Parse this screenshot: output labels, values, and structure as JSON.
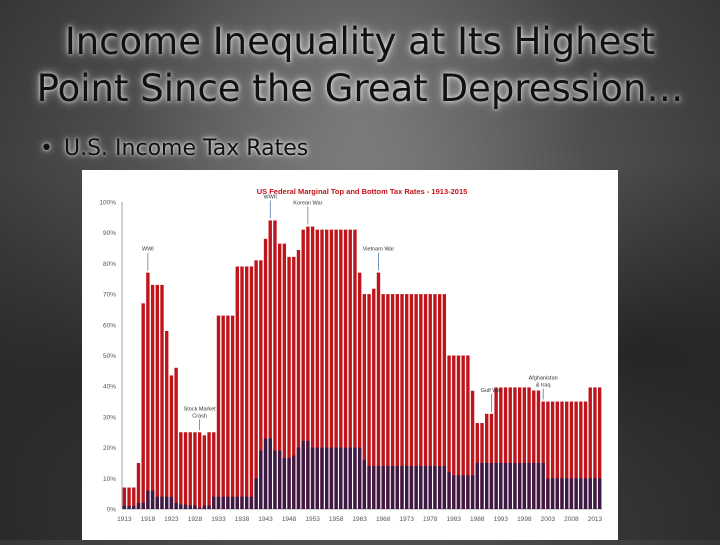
{
  "slide": {
    "title_line1": "Income Inequality at Its Highest",
    "title_line2": "Point Since the Great Depression…",
    "bullet": "U.S. Income Tax Rates",
    "bullet_marker": "•"
  },
  "chart_data": {
    "type": "bar",
    "title": "US Federal Marginal Top and Bottom Tax Rates - 1913-2015",
    "xlabel": "",
    "ylabel": "",
    "ylim": [
      0,
      100
    ],
    "y_ticks": [
      "0%",
      "10%",
      "20%",
      "30%",
      "40%",
      "50%",
      "60%",
      "70%",
      "80%",
      "90%",
      "100%"
    ],
    "x_tick_labels": [
      "1913",
      "1918",
      "1923",
      "1928",
      "1933",
      "1938",
      "1943",
      "1948",
      "1953",
      "1958",
      "1963",
      "1968",
      "1973",
      "1978",
      "1983",
      "1988",
      "1993",
      "1998",
      "2003",
      "2008",
      "2013"
    ],
    "x_start": 1913,
    "x_end": 2015,
    "colors": {
      "top": "#c0141b",
      "bottom": "#3b1a45"
    },
    "series": [
      {
        "name": "top",
        "values": [
          7,
          7,
          7,
          15,
          67,
          77,
          73,
          73,
          73,
          58,
          43.5,
          46,
          25,
          25,
          25,
          25,
          25,
          24,
          25,
          25,
          63,
          63,
          63,
          63,
          79,
          79,
          79,
          79,
          81,
          81,
          88,
          94,
          94,
          86.45,
          86.45,
          82.13,
          82.13,
          84.36,
          91,
          92,
          92,
          91,
          91,
          91,
          91,
          91,
          91,
          91,
          91,
          91,
          77,
          70,
          70,
          71.75,
          77,
          70,
          70,
          70,
          70,
          70,
          70,
          70,
          70,
          70,
          70,
          70,
          70,
          70,
          70,
          50,
          50,
          50,
          50,
          50,
          38.5,
          28,
          28,
          31,
          31,
          39.6,
          39.6,
          39.6,
          39.6,
          39.6,
          39.6,
          39.6,
          39.6,
          38.6,
          38.6,
          35,
          35,
          35,
          35,
          35,
          35,
          35,
          35,
          35,
          35,
          39.6,
          39.6,
          39.6
        ]
      },
      {
        "name": "bottom",
        "values": [
          1,
          1,
          1,
          2,
          2,
          6,
          6,
          4,
          4,
          4,
          4,
          2,
          1.5,
          1.5,
          1.125,
          1.125,
          0.375,
          1.125,
          1.125,
          4,
          4,
          4,
          4,
          4,
          4,
          4,
          4,
          4,
          10,
          19,
          23,
          23,
          19,
          19,
          16.6,
          16.6,
          17.4,
          20,
          22.2,
          22.2,
          20,
          20,
          20,
          20,
          20,
          20,
          20,
          20,
          20,
          20,
          20,
          16,
          14,
          14,
          14,
          14,
          14,
          14,
          14,
          14,
          14,
          14,
          14,
          14,
          14,
          14,
          14,
          14,
          14,
          12,
          11,
          11,
          11,
          11,
          11,
          15,
          15,
          15,
          15,
          15,
          15,
          15,
          15,
          15,
          15,
          15,
          15,
          15,
          15,
          15,
          10,
          10,
          10,
          10,
          10,
          10,
          10,
          10,
          10,
          10,
          10,
          10,
          10
        ]
      }
    ],
    "annotations": [
      {
        "text": "WWII",
        "x": 1944
      },
      {
        "text": "Korean War",
        "x": 1952
      },
      {
        "text": "WWI",
        "x": 1918
      },
      {
        "text": "Vietnam War",
        "x": 1967
      },
      {
        "text": "Stock Market",
        "text2": "Crash",
        "x": 1929
      },
      {
        "text": "Gulf War",
        "x": 1991
      },
      {
        "text": "Afghanistan",
        "text2": "& Iraq",
        "x": 2002
      }
    ],
    "grid": false,
    "legend": "none"
  }
}
